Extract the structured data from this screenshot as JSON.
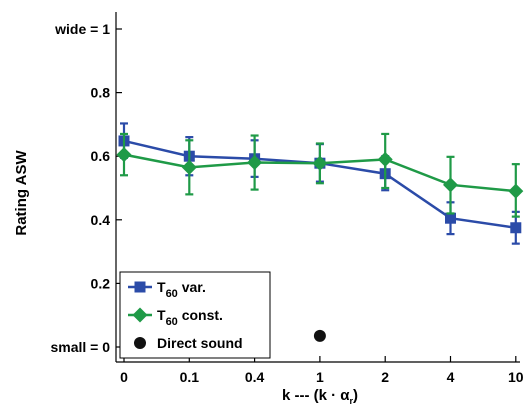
{
  "chart_data": {
    "type": "line",
    "title": "",
    "xlabel": "k --- (k · α",
    "xlabel_subscript": "r",
    "ylabel": "Rating ASW",
    "categories": [
      "0",
      "0.1",
      "0.4",
      "1",
      "2",
      "4",
      "10"
    ],
    "ylim": [
      -0.02,
      1.05
    ],
    "yticks": [
      {
        "value": 0,
        "label": "small = 0"
      },
      {
        "value": 0.2,
        "label": "0.2"
      },
      {
        "value": 0.4,
        "label": "0.4"
      },
      {
        "value": 0.6,
        "label": "0.6"
      },
      {
        "value": 0.8,
        "label": "0.8"
      },
      {
        "value": 1.0,
        "label": "wide = 1"
      }
    ],
    "grid": false,
    "legend_position": "bottom-left",
    "series": [
      {
        "name": "T",
        "name_subscript": "60",
        "name_suffix": " var.",
        "color": "#2b4ba8",
        "marker": "square",
        "values": [
          0.648,
          0.6,
          0.592,
          0.578,
          0.545,
          0.405,
          0.375
        ],
        "err_low": [
          0.595,
          0.54,
          0.535,
          0.52,
          0.493,
          0.355,
          0.325
        ],
        "err_high": [
          0.703,
          0.66,
          0.65,
          0.638,
          0.6,
          0.455,
          0.425
        ]
      },
      {
        "name": "T",
        "name_subscript": "60",
        "name_suffix": " const.",
        "color": "#1f9a47",
        "marker": "diamond",
        "values": [
          0.605,
          0.565,
          0.58,
          0.578,
          0.59,
          0.51,
          0.49
        ],
        "err_low": [
          0.54,
          0.48,
          0.495,
          0.515,
          0.5,
          0.42,
          0.41
        ],
        "err_high": [
          0.67,
          0.65,
          0.665,
          0.64,
          0.67,
          0.598,
          0.575
        ]
      }
    ],
    "points": [
      {
        "name": "Direct sound",
        "x": "1",
        "y": 0.035,
        "color": "#111111",
        "marker": "circle"
      }
    ]
  }
}
